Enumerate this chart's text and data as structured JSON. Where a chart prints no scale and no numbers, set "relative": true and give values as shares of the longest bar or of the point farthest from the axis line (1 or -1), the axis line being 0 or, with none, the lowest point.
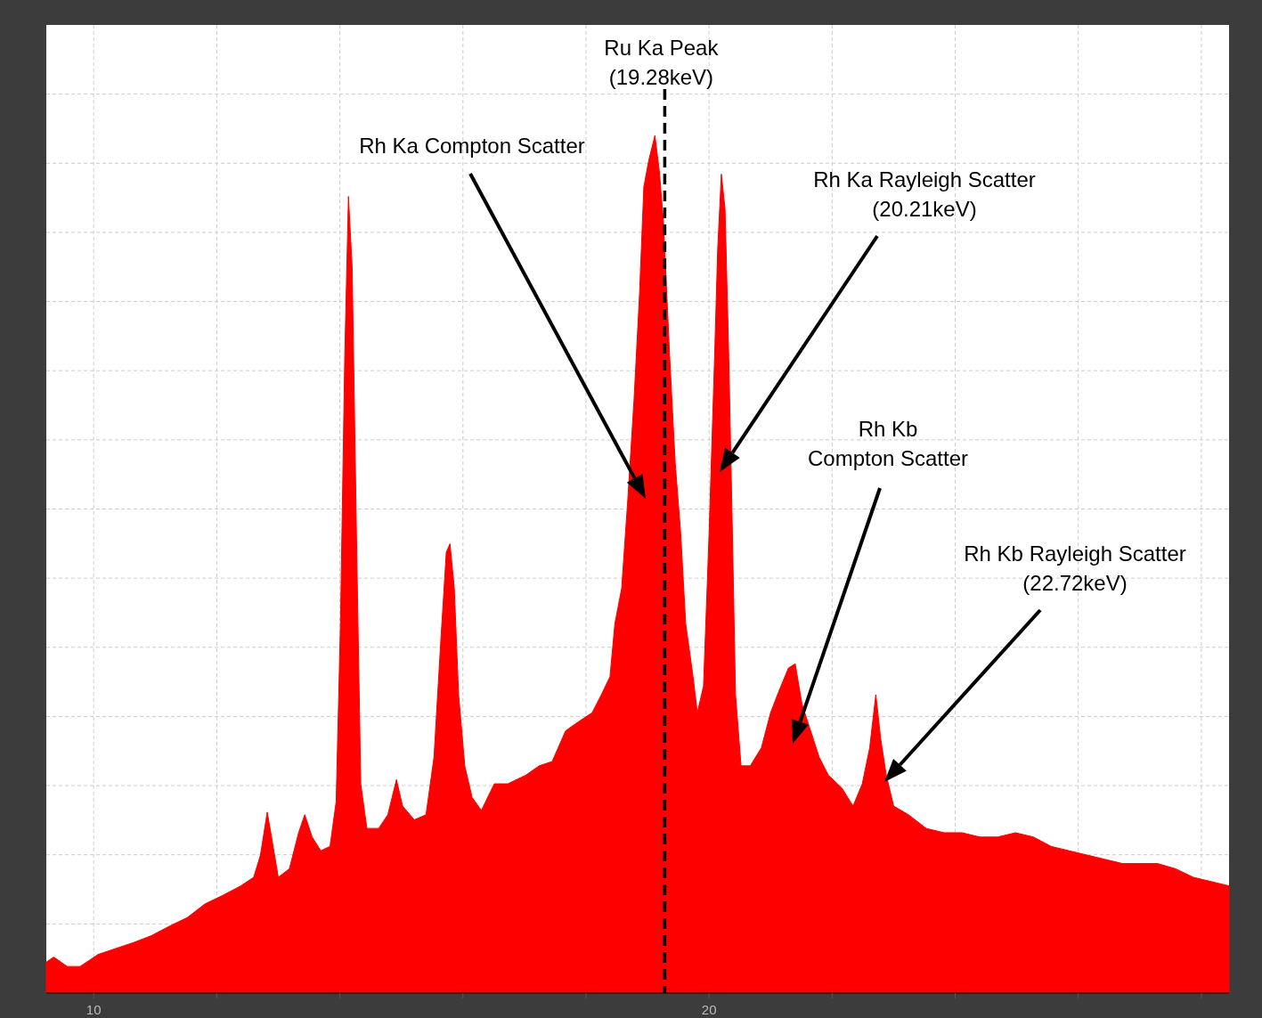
{
  "chart_data": {
    "type": "area",
    "relative": true,
    "color": "#ff0000",
    "grid": true,
    "xlim": [
      9.23,
      28.45
    ],
    "xticks": [
      10,
      {
        "value": 12,
        "label": null
      },
      {
        "value": 14,
        "label": null
      },
      {
        "value": 16,
        "label": null
      },
      {
        "value": 18,
        "label": null
      },
      20,
      {
        "value": 22,
        "label": null
      },
      {
        "value": 24,
        "label": null
      },
      {
        "value": 26,
        "label": null
      },
      {
        "value": 28,
        "label": null
      }
    ],
    "x": [
      9.23,
      9.35,
      9.57,
      9.78,
      10.07,
      10.36,
      10.65,
      10.94,
      11.23,
      11.52,
      11.81,
      12.1,
      12.39,
      12.6,
      12.71,
      12.82,
      12.89,
      13.0,
      13.18,
      13.33,
      13.43,
      13.55,
      13.69,
      13.84,
      13.94,
      14.01,
      14.08,
      14.14,
      14.2,
      14.27,
      14.34,
      14.44,
      14.63,
      14.78,
      14.92,
      15.02,
      15.21,
      15.4,
      15.53,
      15.64,
      15.73,
      15.79,
      15.86,
      15.93,
      16.03,
      16.15,
      16.3,
      16.51,
      16.73,
      17.02,
      17.24,
      17.45,
      17.67,
      17.89,
      18.1,
      18.25,
      18.39,
      18.47,
      18.58,
      18.68,
      18.78,
      18.87,
      18.94,
      19.02,
      19.12,
      19.19,
      19.26,
      19.36,
      19.45,
      19.54,
      19.62,
      19.74,
      19.81,
      19.91,
      20.0,
      20.09,
      20.14,
      20.2,
      20.26,
      20.32,
      20.38,
      20.43,
      20.52,
      20.67,
      20.85,
      21.0,
      21.14,
      21.29,
      21.4,
      21.51,
      21.65,
      21.79,
      21.94,
      22.16,
      22.34,
      22.49,
      22.61,
      22.71,
      22.79,
      22.88,
      23.0,
      23.24,
      23.53,
      23.82,
      24.11,
      24.4,
      24.69,
      24.98,
      25.27,
      25.56,
      25.85,
      26.14,
      26.43,
      26.72,
      27.0,
      27.29,
      27.58,
      27.87,
      28.16,
      28.45
    ],
    "values": [
      0.036,
      0.042,
      0.031,
      0.031,
      0.045,
      0.052,
      0.059,
      0.067,
      0.078,
      0.088,
      0.104,
      0.114,
      0.125,
      0.135,
      0.161,
      0.211,
      0.182,
      0.135,
      0.145,
      0.187,
      0.208,
      0.182,
      0.166,
      0.171,
      0.223,
      0.431,
      0.742,
      0.929,
      0.846,
      0.535,
      0.244,
      0.192,
      0.192,
      0.208,
      0.249,
      0.218,
      0.202,
      0.208,
      0.275,
      0.41,
      0.514,
      0.524,
      0.472,
      0.348,
      0.265,
      0.228,
      0.213,
      0.244,
      0.244,
      0.254,
      0.265,
      0.27,
      0.306,
      0.317,
      0.327,
      0.348,
      0.369,
      0.431,
      0.472,
      0.576,
      0.691,
      0.815,
      0.94,
      0.971,
      1.0,
      0.96,
      0.898,
      0.742,
      0.618,
      0.535,
      0.431,
      0.369,
      0.327,
      0.358,
      0.535,
      0.742,
      0.867,
      0.955,
      0.914,
      0.742,
      0.535,
      0.348,
      0.265,
      0.265,
      0.286,
      0.327,
      0.353,
      0.379,
      0.384,
      0.337,
      0.306,
      0.275,
      0.254,
      0.239,
      0.218,
      0.244,
      0.286,
      0.348,
      0.296,
      0.254,
      0.218,
      0.208,
      0.192,
      0.187,
      0.187,
      0.182,
      0.182,
      0.187,
      0.182,
      0.171,
      0.166,
      0.161,
      0.156,
      0.151,
      0.151,
      0.151,
      0.145,
      0.135,
      0.13,
      0.125
    ],
    "ref_lines": [
      {
        "axis": "x",
        "value": 19.28,
        "label": "Ru Ka Peak\n(19.28keV)",
        "color": "#000000",
        "line_style": "dashed"
      }
    ],
    "annotations": [
      "Rh Ka Compton Scatter",
      "Rh Ka Rayleigh Scatter\n(20.21keV)",
      "Rh Kb\nCompton Scatter",
      "Rh Kb Rayleigh Scatter\n(22.72keV)"
    ]
  }
}
